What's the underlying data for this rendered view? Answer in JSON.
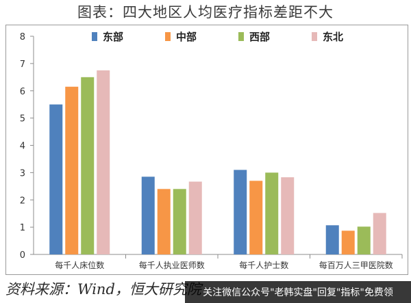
{
  "page": {
    "title": "图表：四大地区人均医疗指标差距不大",
    "source": "资料来源：Wind，恒大研究院",
    "watermark": "关注微信公众号\"老韩实盘\"回复\"指标\"免费领"
  },
  "chart_data": {
    "type": "bar",
    "categories": [
      "每千人床位数",
      "每千人执业医师数",
      "每千人护士数",
      "每百万人三甲医院数"
    ],
    "series": [
      {
        "name": "东部",
        "color": "#4F81BD",
        "values": [
          5.5,
          2.85,
          3.1,
          1.07
        ]
      },
      {
        "name": "中部",
        "color": "#F79646",
        "values": [
          6.15,
          2.4,
          2.7,
          0.87
        ]
      },
      {
        "name": "西部",
        "color": "#9BBB59",
        "values": [
          6.5,
          2.4,
          3.0,
          1.02
        ]
      },
      {
        "name": "东北",
        "color": "#E6B9B8",
        "values": [
          6.75,
          2.67,
          2.83,
          1.52
        ]
      }
    ],
    "ylim": [
      0,
      8
    ],
    "yticks": [
      0,
      1,
      2,
      3,
      4,
      5,
      6,
      7,
      8
    ],
    "xlabel": "",
    "ylabel": "",
    "grid": false,
    "legend": "top-center"
  }
}
